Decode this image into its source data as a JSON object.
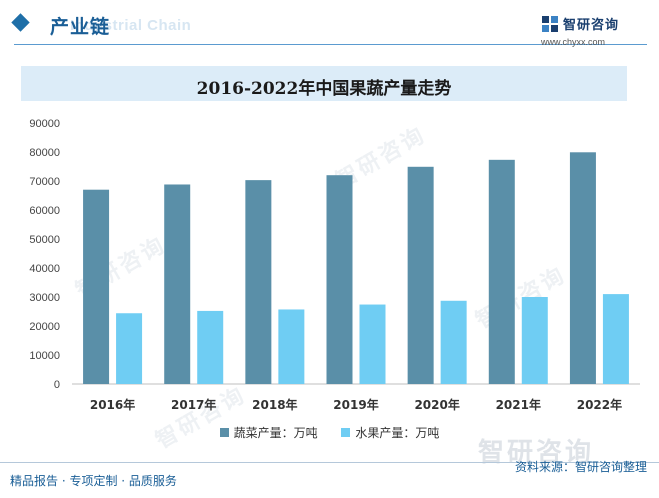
{
  "header": {
    "section_title": "产业链",
    "ghost_title": "Industrial Chain",
    "logo_name": "智研咨询",
    "logo_url": "www.chyxx.com"
  },
  "colors": {
    "accent": "#1f6fa8",
    "series_vegetable": "#5a8fa8",
    "series_fruit": "#6fcdf3",
    "title_bg": "#dcecf8"
  },
  "watermark": {
    "text": "智研咨询"
  },
  "chart_data": {
    "type": "bar",
    "title": "2016-2022年中国果蔬产量走势",
    "categories": [
      "2016年",
      "2017年",
      "2018年",
      "2019年",
      "2020年",
      "2021年",
      "2022年"
    ],
    "series": [
      {
        "name": "蔬菜产量：万吨",
        "values": [
          67000,
          68800,
          70300,
          72000,
          74900,
          77300,
          79900
        ]
      },
      {
        "name": "水果产量：万吨",
        "values": [
          24400,
          25200,
          25700,
          27400,
          28700,
          30000,
          31000
        ]
      }
    ],
    "ylim": [
      0,
      90000
    ],
    "y_ticks": [
      "0",
      "10000",
      "20000",
      "30000",
      "40000",
      "50000",
      "60000",
      "70000",
      "80000",
      "90000"
    ],
    "grid": false,
    "legend_position": "bottom"
  },
  "footer": {
    "left": "精品报告 · 专项定制 · 品质服务",
    "source": "资料来源：智研咨询整理"
  }
}
